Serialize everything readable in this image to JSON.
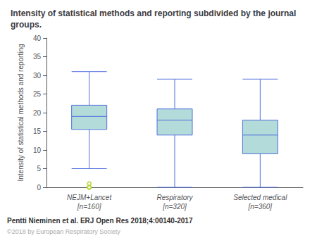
{
  "chart_data": {
    "type": "box",
    "title": "Intensity of statistical methods and reporting subdivided by the journal groups.",
    "ylabel": "Intensity of statistical methods and reporting",
    "categories": [
      "NEJM+Lancet\n[n=160]",
      "Respiratory\n[n=320]",
      "Selected medical\n[n=360]"
    ],
    "boxes": [
      {
        "whislo": 5,
        "q1": 15.5,
        "med": 19,
        "q3": 22,
        "whishi": 31,
        "fliers": [
          0,
          0,
          0,
          0,
          1
        ]
      },
      {
        "whislo": 0,
        "q1": 14,
        "med": 18,
        "q3": 21,
        "whishi": 29,
        "fliers": []
      },
      {
        "whislo": 0,
        "q1": 9,
        "med": 14,
        "q3": 18,
        "whishi": 29,
        "fliers": []
      }
    ],
    "color": "#b2dbd9",
    "ylim": [
      0,
      40
    ],
    "yticks": [
      0,
      5,
      10,
      15,
      20,
      25,
      30,
      35,
      40
    ],
    "grid": false,
    "annotations": [
      "Pentti Nieminen et al. ERJ Open Res 2018;4:00140-2017",
      "©2018 by European Respiratory Society"
    ]
  }
}
